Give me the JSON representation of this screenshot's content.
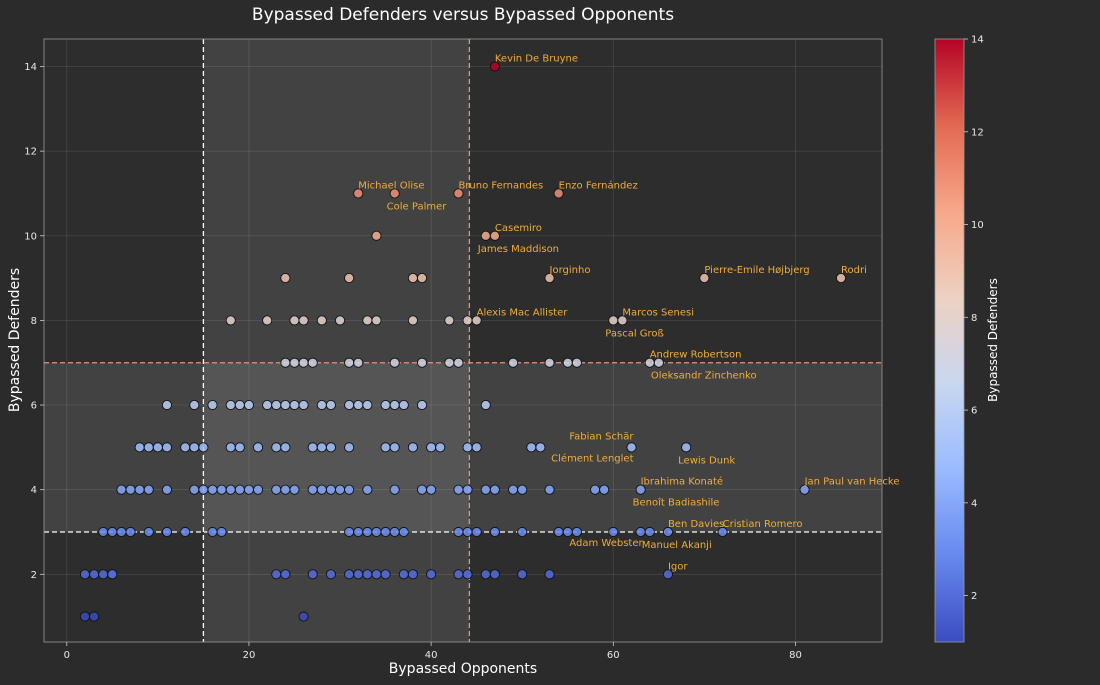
{
  "chart_data": {
    "type": "scatter",
    "title": "Bypassed Defenders versus Bypassed Opponents",
    "xlabel": "Bypassed Opponents",
    "ylabel": "Bypassed Defenders",
    "colorbar_label": "Bypassed Defenders",
    "xlim": [
      -2.5,
      89.5
    ],
    "ylim": [
      0.4,
      14.65
    ],
    "x_ticks": [
      0,
      20,
      40,
      60,
      80
    ],
    "y_ticks": [
      2,
      4,
      6,
      8,
      10,
      12,
      14
    ],
    "colorbar_ticks": [
      2,
      4,
      6,
      8,
      10,
      12,
      14
    ],
    "color_range": [
      1,
      14
    ],
    "colormap": "coolwarm",
    "colormap_stops": [
      "#3b4cc0",
      "#6788ee",
      "#9abbff",
      "#c9d7f0",
      "#edd1c2",
      "#f7a889",
      "#e26952",
      "#b40426"
    ],
    "grid": true,
    "vlines": [
      {
        "x": 15,
        "color": "#ffffff"
      },
      {
        "x": 44.2,
        "color": "#e8927c"
      }
    ],
    "hlines": [
      {
        "y": 7,
        "color": "#e8927c"
      },
      {
        "y": 3,
        "color": "#ffffff"
      }
    ],
    "shaded_regions": [
      {
        "x0": 15,
        "x1": 44.2
      },
      {
        "y0": 3,
        "y1": 7
      }
    ],
    "points": [
      {
        "x": 2,
        "y": 1
      },
      {
        "x": 3,
        "y": 1
      },
      {
        "x": 26,
        "y": 1
      },
      {
        "x": 2,
        "y": 2
      },
      {
        "x": 3,
        "y": 2
      },
      {
        "x": 4,
        "y": 2
      },
      {
        "x": 5,
        "y": 2
      },
      {
        "x": 5,
        "y": 2
      },
      {
        "x": 23,
        "y": 2
      },
      {
        "x": 24,
        "y": 2
      },
      {
        "x": 27,
        "y": 2
      },
      {
        "x": 29,
        "y": 2
      },
      {
        "x": 31,
        "y": 2
      },
      {
        "x": 32,
        "y": 2
      },
      {
        "x": 33,
        "y": 2
      },
      {
        "x": 34,
        "y": 2
      },
      {
        "x": 35,
        "y": 2
      },
      {
        "x": 37,
        "y": 2
      },
      {
        "x": 38,
        "y": 2
      },
      {
        "x": 40,
        "y": 2
      },
      {
        "x": 43,
        "y": 2
      },
      {
        "x": 44,
        "y": 2
      },
      {
        "x": 46,
        "y": 2
      },
      {
        "x": 47,
        "y": 2
      },
      {
        "x": 50,
        "y": 2
      },
      {
        "x": 53,
        "y": 2
      },
      {
        "x": 66,
        "y": 2
      },
      {
        "x": 4,
        "y": 3
      },
      {
        "x": 5,
        "y": 3
      },
      {
        "x": 6,
        "y": 3
      },
      {
        "x": 7,
        "y": 3
      },
      {
        "x": 9,
        "y": 3
      },
      {
        "x": 11,
        "y": 3
      },
      {
        "x": 13,
        "y": 3
      },
      {
        "x": 16,
        "y": 3
      },
      {
        "x": 17,
        "y": 3
      },
      {
        "x": 31,
        "y": 3
      },
      {
        "x": 32,
        "y": 3
      },
      {
        "x": 33,
        "y": 3
      },
      {
        "x": 34,
        "y": 3
      },
      {
        "x": 35,
        "y": 3
      },
      {
        "x": 36,
        "y": 3
      },
      {
        "x": 37,
        "y": 3
      },
      {
        "x": 43,
        "y": 3
      },
      {
        "x": 44,
        "y": 3
      },
      {
        "x": 45,
        "y": 3
      },
      {
        "x": 47,
        "y": 3
      },
      {
        "x": 50,
        "y": 3
      },
      {
        "x": 54,
        "y": 3
      },
      {
        "x": 55,
        "y": 3
      },
      {
        "x": 56,
        "y": 3
      },
      {
        "x": 60,
        "y": 3
      },
      {
        "x": 63,
        "y": 3
      },
      {
        "x": 64,
        "y": 3
      },
      {
        "x": 66,
        "y": 3
      },
      {
        "x": 72,
        "y": 3
      },
      {
        "x": 6,
        "y": 4
      },
      {
        "x": 7,
        "y": 4
      },
      {
        "x": 8,
        "y": 4
      },
      {
        "x": 9,
        "y": 4
      },
      {
        "x": 11,
        "y": 4
      },
      {
        "x": 14,
        "y": 4
      },
      {
        "x": 15,
        "y": 4
      },
      {
        "x": 16,
        "y": 4
      },
      {
        "x": 17,
        "y": 4
      },
      {
        "x": 18,
        "y": 4
      },
      {
        "x": 19,
        "y": 4
      },
      {
        "x": 20,
        "y": 4
      },
      {
        "x": 21,
        "y": 4
      },
      {
        "x": 23,
        "y": 4
      },
      {
        "x": 24,
        "y": 4
      },
      {
        "x": 25,
        "y": 4
      },
      {
        "x": 27,
        "y": 4
      },
      {
        "x": 28,
        "y": 4
      },
      {
        "x": 29,
        "y": 4
      },
      {
        "x": 30,
        "y": 4
      },
      {
        "x": 31,
        "y": 4
      },
      {
        "x": 33,
        "y": 4
      },
      {
        "x": 36,
        "y": 4
      },
      {
        "x": 39,
        "y": 4
      },
      {
        "x": 40,
        "y": 4
      },
      {
        "x": 43,
        "y": 4
      },
      {
        "x": 44,
        "y": 4
      },
      {
        "x": 46,
        "y": 4
      },
      {
        "x": 47,
        "y": 4
      },
      {
        "x": 49,
        "y": 4
      },
      {
        "x": 50,
        "y": 4
      },
      {
        "x": 53,
        "y": 4
      },
      {
        "x": 58,
        "y": 4
      },
      {
        "x": 59,
        "y": 4
      },
      {
        "x": 63,
        "y": 4
      },
      {
        "x": 81,
        "y": 4
      },
      {
        "x": 8,
        "y": 5
      },
      {
        "x": 9,
        "y": 5
      },
      {
        "x": 10,
        "y": 5
      },
      {
        "x": 11,
        "y": 5
      },
      {
        "x": 13,
        "y": 5
      },
      {
        "x": 14,
        "y": 5
      },
      {
        "x": 15,
        "y": 5
      },
      {
        "x": 18,
        "y": 5
      },
      {
        "x": 19,
        "y": 5
      },
      {
        "x": 21,
        "y": 5
      },
      {
        "x": 23,
        "y": 5
      },
      {
        "x": 24,
        "y": 5
      },
      {
        "x": 27,
        "y": 5
      },
      {
        "x": 28,
        "y": 5
      },
      {
        "x": 29,
        "y": 5
      },
      {
        "x": 31,
        "y": 5
      },
      {
        "x": 35,
        "y": 5
      },
      {
        "x": 36,
        "y": 5
      },
      {
        "x": 38,
        "y": 5
      },
      {
        "x": 40,
        "y": 5
      },
      {
        "x": 41,
        "y": 5
      },
      {
        "x": 44,
        "y": 5
      },
      {
        "x": 45,
        "y": 5
      },
      {
        "x": 51,
        "y": 5
      },
      {
        "x": 52,
        "y": 5
      },
      {
        "x": 62,
        "y": 5
      },
      {
        "x": 68,
        "y": 5
      },
      {
        "x": 11,
        "y": 6
      },
      {
        "x": 14,
        "y": 6
      },
      {
        "x": 16,
        "y": 6
      },
      {
        "x": 18,
        "y": 6
      },
      {
        "x": 19,
        "y": 6
      },
      {
        "x": 20,
        "y": 6
      },
      {
        "x": 22,
        "y": 6
      },
      {
        "x": 23,
        "y": 6
      },
      {
        "x": 24,
        "y": 6
      },
      {
        "x": 25,
        "y": 6
      },
      {
        "x": 26,
        "y": 6
      },
      {
        "x": 28,
        "y": 6
      },
      {
        "x": 29,
        "y": 6
      },
      {
        "x": 31,
        "y": 6
      },
      {
        "x": 32,
        "y": 6
      },
      {
        "x": 33,
        "y": 6
      },
      {
        "x": 35,
        "y": 6
      },
      {
        "x": 36,
        "y": 6
      },
      {
        "x": 37,
        "y": 6
      },
      {
        "x": 39,
        "y": 6
      },
      {
        "x": 46,
        "y": 6
      },
      {
        "x": 24,
        "y": 7
      },
      {
        "x": 25,
        "y": 7
      },
      {
        "x": 26,
        "y": 7
      },
      {
        "x": 27,
        "y": 7
      },
      {
        "x": 31,
        "y": 7
      },
      {
        "x": 32,
        "y": 7
      },
      {
        "x": 36,
        "y": 7
      },
      {
        "x": 39,
        "y": 7
      },
      {
        "x": 42,
        "y": 7
      },
      {
        "x": 43,
        "y": 7
      },
      {
        "x": 49,
        "y": 7
      },
      {
        "x": 53,
        "y": 7
      },
      {
        "x": 55,
        "y": 7
      },
      {
        "x": 56,
        "y": 7
      },
      {
        "x": 64,
        "y": 7
      },
      {
        "x": 65,
        "y": 7
      },
      {
        "x": 18,
        "y": 8
      },
      {
        "x": 22,
        "y": 8
      },
      {
        "x": 25,
        "y": 8
      },
      {
        "x": 26,
        "y": 8
      },
      {
        "x": 28,
        "y": 8
      },
      {
        "x": 30,
        "y": 8
      },
      {
        "x": 33,
        "y": 8
      },
      {
        "x": 34,
        "y": 8
      },
      {
        "x": 38,
        "y": 8
      },
      {
        "x": 42,
        "y": 8
      },
      {
        "x": 44,
        "y": 8
      },
      {
        "x": 45,
        "y": 8
      },
      {
        "x": 60,
        "y": 8
      },
      {
        "x": 61,
        "y": 8
      },
      {
        "x": 24,
        "y": 9
      },
      {
        "x": 31,
        "y": 9
      },
      {
        "x": 38,
        "y": 9
      },
      {
        "x": 39,
        "y": 9
      },
      {
        "x": 53,
        "y": 9
      },
      {
        "x": 70,
        "y": 9
      },
      {
        "x": 85,
        "y": 9
      },
      {
        "x": 34,
        "y": 10
      },
      {
        "x": 46,
        "y": 10
      },
      {
        "x": 47,
        "y": 10
      },
      {
        "x": 32,
        "y": 11
      },
      {
        "x": 36,
        "y": 11
      },
      {
        "x": 43,
        "y": 11
      },
      {
        "x": 54,
        "y": 11
      },
      {
        "x": 47,
        "y": 14
      }
    ],
    "annotations": [
      {
        "text": "Kevin De Bruyne",
        "x": 47,
        "y": 14,
        "pos": "above"
      },
      {
        "text": "Michael Olise",
        "x": 32,
        "y": 11,
        "pos": "above"
      },
      {
        "text": "Bruno Fernandes",
        "x": 43,
        "y": 11,
        "pos": "above"
      },
      {
        "text": "Enzo Fernández",
        "x": 54,
        "y": 11,
        "pos": "above"
      },
      {
        "text": "Cole Palmer",
        "x": 36,
        "y": 11,
        "pos": "below"
      },
      {
        "text": "Casemiro",
        "x": 47,
        "y": 10,
        "pos": "above"
      },
      {
        "text": "James Maddison",
        "x": 46,
        "y": 10,
        "pos": "below"
      },
      {
        "text": "Jorginho",
        "x": 53,
        "y": 9,
        "pos": "above"
      },
      {
        "text": "Pierre-Emile Højbjerg",
        "x": 70,
        "y": 9,
        "pos": "above"
      },
      {
        "text": "Rodri",
        "x": 85,
        "y": 9,
        "pos": "above"
      },
      {
        "text": "Alexis Mac Allister",
        "x": 45,
        "y": 8,
        "pos": "above"
      },
      {
        "text": "Marcos Senesi",
        "x": 61,
        "y": 8,
        "pos": "above"
      },
      {
        "text": "Pascal Groß",
        "x": 60,
        "y": 8,
        "pos": "below"
      },
      {
        "text": "Andrew Robertson",
        "x": 64,
        "y": 7,
        "pos": "above"
      },
      {
        "text": "Oleksandr Zinchenko",
        "x": 65,
        "y": 7,
        "pos": "below"
      },
      {
        "text": "Fabian Schär",
        "x": 62,
        "y": 5,
        "pos": "above-left"
      },
      {
        "text": "Clément Lenglet",
        "x": 62,
        "y": 5,
        "pos": "below-left"
      },
      {
        "text": "Lewis Dunk",
        "x": 68,
        "y": 5,
        "pos": "below"
      },
      {
        "text": "Ibrahima Konaté",
        "x": 63,
        "y": 4,
        "pos": "above"
      },
      {
        "text": "Benoît Badiashile",
        "x": 63,
        "y": 4,
        "pos": "below"
      },
      {
        "text": "Jan Paul van Hecke",
        "x": 81,
        "y": 4,
        "pos": "above"
      },
      {
        "text": "Ben Davies",
        "x": 66,
        "y": 3,
        "pos": "above"
      },
      {
        "text": "Cristian Romero",
        "x": 72,
        "y": 3,
        "pos": "above"
      },
      {
        "text": "Adam Webster",
        "x": 63,
        "y": 3,
        "pos": "below-left"
      },
      {
        "text": "Manuel Akanji",
        "x": 64,
        "y": 3,
        "pos": "below"
      },
      {
        "text": "Igor",
        "x": 66,
        "y": 2,
        "pos": "above"
      }
    ]
  }
}
